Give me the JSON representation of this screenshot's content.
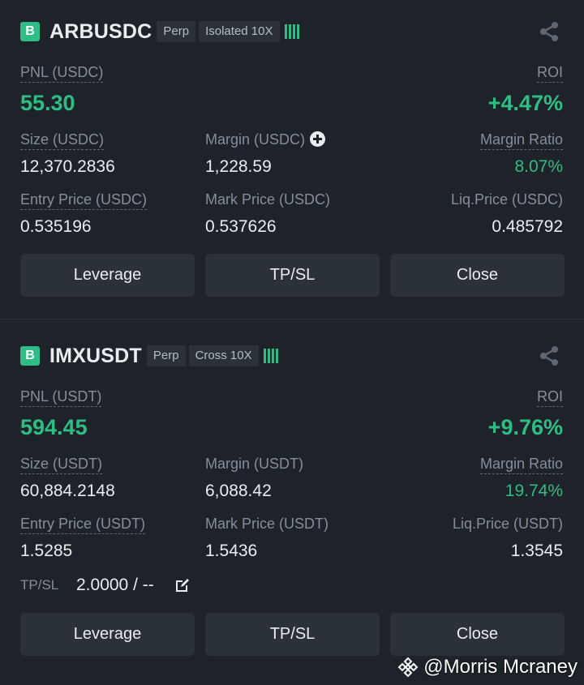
{
  "positions": [
    {
      "badge": "B",
      "symbol": "ARBUSDC",
      "type": "Perp",
      "margin_mode": "Isolated 10X",
      "pnl_label": "PNL (USDC)",
      "pnl": "55.30",
      "roi_label": "ROI",
      "roi": "+4.47%",
      "size_label": "Size (USDC)",
      "size": "12,370.2836",
      "margin_label": "Margin (USDC)",
      "margin": "1,228.59",
      "margin_ratio_label": "Margin Ratio",
      "margin_ratio": "8.07%",
      "entry_label": "Entry Price (USDC)",
      "entry": "0.535196",
      "mark_label": "Mark Price (USDC)",
      "mark": "0.537626",
      "liq_label": "Liq.Price (USDC)",
      "liq": "0.485792",
      "buttons": {
        "leverage": "Leverage",
        "tpsl": "TP/SL",
        "close": "Close"
      }
    },
    {
      "badge": "B",
      "symbol": "IMXUSDT",
      "type": "Perp",
      "margin_mode": "Cross 10X",
      "pnl_label": "PNL (USDT)",
      "pnl": "594.45",
      "roi_label": "ROI",
      "roi": "+9.76%",
      "size_label": "Size (USDT)",
      "size": "60,884.2148",
      "margin_label": "Margin (USDT)",
      "margin": "6,088.42",
      "margin_ratio_label": "Margin Ratio",
      "margin_ratio": "19.74%",
      "entry_label": "Entry Price (USDT)",
      "entry": "1.5285",
      "mark_label": "Mark Price (USDT)",
      "mark": "1.5436",
      "liq_label": "Liq.Price (USDT)",
      "liq": "1.3545",
      "tpsl_label": "TP/SL",
      "tpsl_value": "2.0000 / --",
      "buttons": {
        "leverage": "Leverage",
        "tpsl": "TP/SL",
        "close": "Close"
      }
    }
  ],
  "watermark": "@Morris Mcraney",
  "colors": {
    "profit": "#2ebd85",
    "background": "#1e2329",
    "button": "#2b3139",
    "muted": "#848e9c"
  },
  "icons": [
    "share-icon",
    "add-margin-icon",
    "edit-icon",
    "binance-logo-icon",
    "leverage-bars-icon"
  ]
}
